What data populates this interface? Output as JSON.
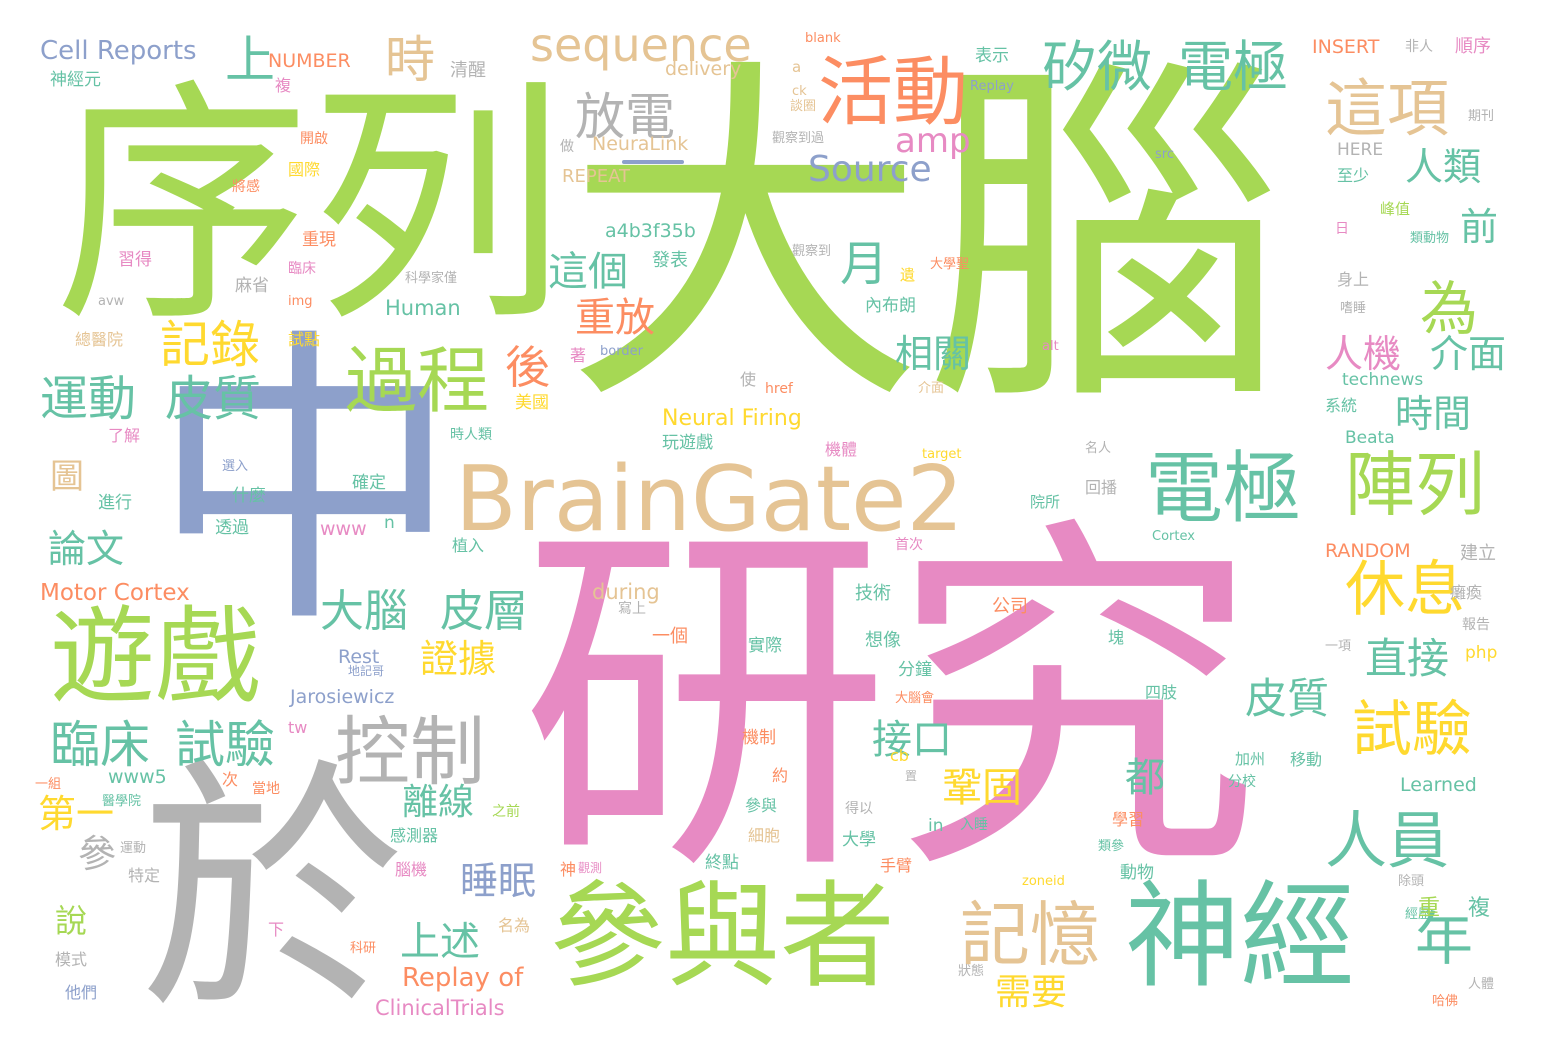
{
  "palette": {
    "green": "#a6d854",
    "teal": "#66c2a5",
    "pink": "#e78ac3",
    "grey": "#b3b3b3",
    "blue": "#8da0cb",
    "orange": "#fc8d62",
    "tan": "#e5c494",
    "yellow": "#ffd92f"
  },
  "words": [
    {
      "text": "大腦",
      "color": "green"
    },
    {
      "text": "研究",
      "color": "pink"
    },
    {
      "text": "序列",
      "color": "green"
    },
    {
      "text": "中",
      "color": "blue"
    },
    {
      "text": "於",
      "color": "grey"
    },
    {
      "text": "BrainGate2",
      "color": "tan"
    },
    {
      "text": "參與者",
      "color": "green"
    },
    {
      "text": "神經",
      "color": "teal"
    },
    {
      "text": "遊戲",
      "color": "green"
    },
    {
      "text": "活動",
      "color": "orange"
    },
    {
      "text": "過程",
      "color": "green"
    },
    {
      "text": "電極",
      "color": "teal"
    },
    {
      "text": "陣列",
      "color": "green"
    },
    {
      "text": "控制",
      "color": "grey"
    },
    {
      "text": "記憶",
      "color": "tan"
    },
    {
      "text": "人員",
      "color": "teal"
    },
    {
      "text": "sequence",
      "color": "tan"
    },
    {
      "text": "矽微",
      "color": "teal"
    },
    {
      "text": "電極",
      "color": "teal"
    },
    {
      "text": "這項",
      "color": "tan"
    },
    {
      "text": "為",
      "color": "green"
    },
    {
      "text": "休息",
      "color": "yellow"
    },
    {
      "text": "試驗",
      "color": "yellow"
    },
    {
      "text": "運動",
      "color": "teal"
    },
    {
      "text": "皮質",
      "color": "teal"
    },
    {
      "text": "臨床",
      "color": "teal"
    },
    {
      "text": "試驗",
      "color": "teal"
    },
    {
      "text": "記錄",
      "color": "yellow"
    },
    {
      "text": "放電",
      "color": "grey"
    },
    {
      "text": "大腦",
      "color": "teal"
    },
    {
      "text": "皮層",
      "color": "teal"
    },
    {
      "text": "年",
      "color": "teal"
    },
    {
      "text": "時",
      "color": "tan"
    },
    {
      "text": "上",
      "color": "teal"
    },
    {
      "text": "月",
      "color": "teal"
    },
    {
      "text": "重放",
      "color": "orange"
    },
    {
      "text": "這個",
      "color": "teal"
    },
    {
      "text": "後",
      "color": "orange"
    },
    {
      "text": "人類",
      "color": "teal"
    },
    {
      "text": "前",
      "color": "teal"
    },
    {
      "text": "相關",
      "color": "teal"
    },
    {
      "text": "人機",
      "color": "pink"
    },
    {
      "text": "介面",
      "color": "teal"
    },
    {
      "text": "時間",
      "color": "teal"
    },
    {
      "text": "Source",
      "color": "blue"
    },
    {
      "text": "amp",
      "color": "pink"
    },
    {
      "text": "直接",
      "color": "teal"
    },
    {
      "text": "皮質",
      "color": "teal"
    },
    {
      "text": "接口",
      "color": "teal"
    },
    {
      "text": "鞏固",
      "color": "yellow"
    },
    {
      "text": "都",
      "color": "teal"
    },
    {
      "text": "離線",
      "color": "teal"
    },
    {
      "text": "證據",
      "color": "yellow"
    },
    {
      "text": "睡眠",
      "color": "blue"
    },
    {
      "text": "上述",
      "color": "teal"
    },
    {
      "text": "需要",
      "color": "yellow"
    },
    {
      "text": "論文",
      "color": "teal"
    },
    {
      "text": "第一",
      "color": "yellow"
    },
    {
      "text": "參",
      "color": "grey"
    },
    {
      "text": "說",
      "color": "green"
    },
    {
      "text": "圖",
      "color": "tan"
    },
    {
      "text": "Cell Reports",
      "color": "blue"
    },
    {
      "text": "NUMBER",
      "color": "orange"
    },
    {
      "text": "神經元",
      "color": "teal"
    },
    {
      "text": "清醒",
      "color": "grey"
    },
    {
      "text": "delivery",
      "color": "tan"
    },
    {
      "text": "NeuraLink",
      "color": "tan"
    },
    {
      "text": "REPEAT",
      "color": "tan"
    },
    {
      "text": "a4b3f35b",
      "color": "teal"
    },
    {
      "text": "Motor Cortex",
      "color": "orange"
    },
    {
      "text": "Neural Firing",
      "color": "yellow"
    },
    {
      "text": "Human",
      "color": "teal"
    },
    {
      "text": "Replay of",
      "color": "orange"
    },
    {
      "text": "ClinicalTrials",
      "color": "pink"
    },
    {
      "text": "Jarosiewicz",
      "color": "blue"
    },
    {
      "text": "www5",
      "color": "teal"
    },
    {
      "text": "www",
      "color": "pink"
    },
    {
      "text": "during",
      "color": "tan"
    },
    {
      "text": "Rest",
      "color": "blue"
    },
    {
      "text": "INSERT",
      "color": "orange"
    },
    {
      "text": "RANDOM",
      "color": "orange"
    },
    {
      "text": "Learned",
      "color": "teal"
    },
    {
      "text": "technews",
      "color": "teal"
    },
    {
      "text": "Beata",
      "color": "teal"
    },
    {
      "text": "HERE",
      "color": "grey"
    },
    {
      "text": "表示",
      "color": "teal"
    },
    {
      "text": "順序",
      "color": "pink"
    },
    {
      "text": "非人",
      "color": "grey"
    },
    {
      "text": "期刊",
      "color": "grey"
    },
    {
      "text": "至少",
      "color": "teal"
    },
    {
      "text": "峰值",
      "color": "green"
    },
    {
      "text": "類動物",
      "color": "teal"
    },
    {
      "text": "身上",
      "color": "grey"
    },
    {
      "text": "系統",
      "color": "teal"
    },
    {
      "text": "建立",
      "color": "grey"
    },
    {
      "text": "癱瘓",
      "color": "grey"
    },
    {
      "text": "報告",
      "color": "grey"
    },
    {
      "text": "php",
      "color": "yellow"
    },
    {
      "text": "移動",
      "color": "teal"
    },
    {
      "text": "加州",
      "color": "teal"
    },
    {
      "text": "分校",
      "color": "teal"
    },
    {
      "text": "學習",
      "color": "orange"
    },
    {
      "text": "類參",
      "color": "teal"
    },
    {
      "text": "除頭",
      "color": "grey"
    },
    {
      "text": "經歷",
      "color": "teal"
    },
    {
      "text": "人體",
      "color": "grey"
    },
    {
      "text": "哈佛",
      "color": "orange"
    },
    {
      "text": "發表",
      "color": "teal"
    },
    {
      "text": "玩遊戲",
      "color": "teal"
    },
    {
      "text": "一個",
      "color": "orange"
    },
    {
      "text": "實際",
      "color": "teal"
    },
    {
      "text": "想像",
      "color": "teal"
    },
    {
      "text": "分鐘",
      "color": "teal"
    },
    {
      "text": "機制",
      "color": "orange"
    },
    {
      "text": "約",
      "color": "orange"
    },
    {
      "text": "參與",
      "color": "teal"
    },
    {
      "text": "細胞",
      "color": "tan"
    },
    {
      "text": "終點",
      "color": "teal"
    },
    {
      "text": "大學",
      "color": "teal"
    },
    {
      "text": "手臂",
      "color": "orange"
    },
    {
      "text": "動物",
      "color": "teal"
    },
    {
      "text": "技術",
      "color": "teal"
    },
    {
      "text": "公司",
      "color": "orange"
    },
    {
      "text": "四肢",
      "color": "teal"
    },
    {
      "text": "回播",
      "color": "grey"
    },
    {
      "text": "院所",
      "color": "teal"
    },
    {
      "text": "首次",
      "color": "pink"
    },
    {
      "text": "植入",
      "color": "teal"
    },
    {
      "text": "確定",
      "color": "teal"
    },
    {
      "text": "什麼",
      "color": "teal"
    },
    {
      "text": "透過",
      "color": "teal"
    },
    {
      "text": "進行",
      "color": "teal"
    },
    {
      "text": "了解",
      "color": "pink"
    },
    {
      "text": "美國",
      "color": "yellow"
    },
    {
      "text": "總醫院",
      "color": "tan"
    },
    {
      "text": "試點",
      "color": "yellow"
    },
    {
      "text": "麻省",
      "color": "grey"
    },
    {
      "text": "臨床",
      "color": "pink"
    },
    {
      "text": "重現",
      "color": "orange"
    },
    {
      "text": "習得",
      "color": "pink"
    },
    {
      "text": "國際",
      "color": "yellow"
    },
    {
      "text": "將感",
      "color": "orange"
    },
    {
      "text": "開啟",
      "color": "orange"
    },
    {
      "text": "複",
      "color": "pink"
    },
    {
      "text": "做",
      "color": "grey"
    },
    {
      "text": "觀察到過",
      "color": "grey"
    },
    {
      "text": "觀察到",
      "color": "grey"
    },
    {
      "text": "科學家僅",
      "color": "grey"
    },
    {
      "text": "內布朗",
      "color": "teal"
    },
    {
      "text": "大學聖",
      "color": "orange"
    },
    {
      "text": "blank",
      "color": "orange"
    },
    {
      "text": "src",
      "color": "blue"
    },
    {
      "text": "alt",
      "color": "pink"
    },
    {
      "text": "href",
      "color": "orange"
    },
    {
      "text": "target",
      "color": "yellow"
    },
    {
      "text": "border",
      "color": "blue"
    },
    {
      "text": "img",
      "color": "orange"
    },
    {
      "text": "avw",
      "color": "grey"
    },
    {
      "text": "zoneid",
      "color": "yellow"
    },
    {
      "text": "Cortex",
      "color": "teal"
    },
    {
      "text": "cb",
      "color": "yellow"
    },
    {
      "text": "in",
      "color": "teal"
    },
    {
      "text": "tw",
      "color": "pink"
    },
    {
      "text": "n",
      "color": "teal"
    },
    {
      "text": "a",
      "color": "tan"
    },
    {
      "text": "ck",
      "color": "tan"
    },
    {
      "text": "Replay",
      "color": "blue"
    },
    {
      "text": "時人類",
      "color": "teal"
    },
    {
      "text": "機體",
      "color": "pink"
    },
    {
      "text": "腦機",
      "color": "pink"
    },
    {
      "text": "感測器",
      "color": "teal"
    },
    {
      "text": "特定",
      "color": "grey"
    },
    {
      "text": "模式",
      "color": "grey"
    },
    {
      "text": "他們",
      "color": "blue"
    },
    {
      "text": "名為",
      "color": "tan"
    },
    {
      "text": "得以",
      "color": "grey"
    },
    {
      "text": "神",
      "color": "orange"
    },
    {
      "text": "重",
      "color": "green"
    },
    {
      "text": "複",
      "color": "teal"
    },
    {
      "text": "一項",
      "color": "grey"
    },
    {
      "text": "名人",
      "color": "grey"
    },
    {
      "text": "選入",
      "color": "blue"
    },
    {
      "text": "一組",
      "color": "orange"
    },
    {
      "text": "運動",
      "color": "grey"
    },
    {
      "text": "醫學院",
      "color": "teal"
    },
    {
      "text": "當地",
      "color": "orange"
    },
    {
      "text": "次",
      "color": "orange"
    },
    {
      "text": "之前",
      "color": "green"
    },
    {
      "text": "入睡",
      "color": "teal"
    },
    {
      "text": "使",
      "color": "grey"
    },
    {
      "text": "介面",
      "color": "tan"
    },
    {
      "text": "遺",
      "color": "yellow"
    },
    {
      "text": "日",
      "color": "pink"
    },
    {
      "text": "嗜睡",
      "color": "grey"
    },
    {
      "text": "談圈",
      "color": "tan"
    },
    {
      "text": "著",
      "color": "pink"
    },
    {
      "text": "下",
      "color": "pink"
    },
    {
      "text": "科研",
      "color": "orange"
    },
    {
      "text": "狀態",
      "color": "grey"
    },
    {
      "text": "地記哥",
      "color": "blue"
    },
    {
      "text": "寫上",
      "color": "grey"
    },
    {
      "text": "觀測",
      "color": "pink"
    },
    {
      "text": "置",
      "color": "grey"
    },
    {
      "text": "塊",
      "color": "teal"
    },
    {
      "text": "大腦會",
      "color": "orange"
    }
  ]
}
